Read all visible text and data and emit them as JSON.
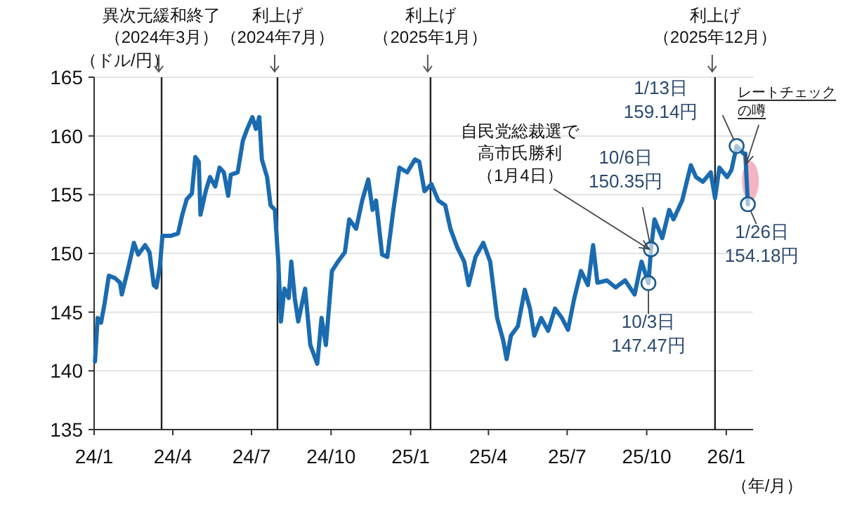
{
  "chart_data": {
    "type": "line",
    "ylabel": "（ドル/円）",
    "xlabel": "（年/月）",
    "xlim": [
      "2024-01-01",
      "2026-02-01"
    ],
    "ylim": [
      135,
      165
    ],
    "xticks": [
      {
        "value": "2024-01-01",
        "label": "24/1"
      },
      {
        "value": "2024-04-01",
        "label": "24/4"
      },
      {
        "value": "2024-07-01",
        "label": "24/7"
      },
      {
        "value": "2024-10-01",
        "label": "24/10"
      },
      {
        "value": "2025-01-01",
        "label": "25/1"
      },
      {
        "value": "2025-04-01",
        "label": "25/4"
      },
      {
        "value": "2025-07-01",
        "label": "25/7"
      },
      {
        "value": "2025-10-01",
        "label": "25/10"
      },
      {
        "value": "2026-01-01",
        "label": "26/1"
      }
    ],
    "yticks": [
      135,
      140,
      145,
      150,
      155,
      160,
      165
    ],
    "grid": "y",
    "x": [
      "2024-01-02",
      "2024-01-05",
      "2024-01-09",
      "2024-01-13",
      "2024-01-18",
      "2024-01-25",
      "2024-01-31",
      "2024-02-02",
      "2024-02-08",
      "2024-02-13",
      "2024-02-16",
      "2024-02-21",
      "2024-02-29",
      "2024-03-05",
      "2024-03-10",
      "2024-03-13",
      "2024-03-17",
      "2024-03-20",
      "2024-03-30",
      "2024-04-07",
      "2024-04-12",
      "2024-04-17",
      "2024-04-23",
      "2024-04-27",
      "2024-05-01",
      "2024-05-03",
      "2024-05-09",
      "2024-05-14",
      "2024-05-20",
      "2024-05-25",
      "2024-05-30",
      "2024-06-04",
      "2024-06-07",
      "2024-06-15",
      "2024-06-21",
      "2024-06-26",
      "2024-07-02",
      "2024-07-06",
      "2024-07-10",
      "2024-07-13",
      "2024-07-19",
      "2024-07-23",
      "2024-07-28",
      "2024-08-01",
      "2024-08-04",
      "2024-08-08",
      "2024-08-13",
      "2024-08-16",
      "2024-08-20",
      "2024-08-24",
      "2024-09-01",
      "2024-09-07",
      "2024-09-15",
      "2024-09-20",
      "2024-09-25",
      "2024-10-02",
      "2024-10-09",
      "2024-10-17",
      "2024-10-22",
      "2024-10-30",
      "2024-11-06",
      "2024-11-13",
      "2024-11-18",
      "2024-11-22",
      "2024-11-29",
      "2024-12-05",
      "2024-12-12",
      "2024-12-19",
      "2024-12-28",
      "2025-01-06",
      "2025-01-11",
      "2025-01-17",
      "2025-01-25",
      "2025-02-02",
      "2025-02-10",
      "2025-02-16",
      "2025-02-24",
      "2025-03-04",
      "2025-03-09",
      "2025-03-17",
      "2025-03-26",
      "2025-04-03",
      "2025-04-11",
      "2025-04-18",
      "2025-04-22",
      "2025-04-27",
      "2025-05-05",
      "2025-05-13",
      "2025-05-19",
      "2025-05-24",
      "2025-06-01",
      "2025-06-09",
      "2025-06-17",
      "2025-06-25",
      "2025-07-02",
      "2025-07-09",
      "2025-07-17",
      "2025-07-25",
      "2025-07-31",
      "2025-08-05",
      "2025-08-16",
      "2025-08-26",
      "2025-09-06",
      "2025-09-17",
      "2025-09-25",
      "2025-10-03",
      "2025-10-06",
      "2025-10-10",
      "2025-10-19",
      "2025-10-27",
      "2025-11-01",
      "2025-11-11",
      "2025-11-21",
      "2025-11-27",
      "2025-12-05",
      "2025-12-14",
      "2025-12-19",
      "2025-12-24",
      "2026-01-02",
      "2026-01-07",
      "2026-01-13",
      "2026-01-21",
      "2026-01-23",
      "2026-01-26"
    ],
    "series": [
      {
        "color": "#1a6bb0",
        "values": [
          140.8,
          144.5,
          144.1,
          145.7,
          148.1,
          147.9,
          147.5,
          146.5,
          148.3,
          149.9,
          150.9,
          149.9,
          150.7,
          150.1,
          147.3,
          147.1,
          148.9,
          151.5,
          151.5,
          151.7,
          153.3,
          154.6,
          155.1,
          158.2,
          157.8,
          153.3,
          155.3,
          156.5,
          155.7,
          157.3,
          156.9,
          154.9,
          156.7,
          156.9,
          159.6,
          160.6,
          161.6,
          160.6,
          161.6,
          158.0,
          156.5,
          154.1,
          153.7,
          149.3,
          144.2,
          147.0,
          146.2,
          149.3,
          146.2,
          144.2,
          147.0,
          142.2,
          140.6,
          144.5,
          142.2,
          148.5,
          149.3,
          150.1,
          152.9,
          152.1,
          154.5,
          156.3,
          153.7,
          154.5,
          149.9,
          149.7,
          153.7,
          157.3,
          156.9,
          158.0,
          157.8,
          155.3,
          155.9,
          154.5,
          154.1,
          152.1,
          150.5,
          149.3,
          147.3,
          149.7,
          150.9,
          149.3,
          144.5,
          142.6,
          141.0,
          143.0,
          143.8,
          146.9,
          145.3,
          143.0,
          144.5,
          143.4,
          145.3,
          144.5,
          143.5,
          146.1,
          148.5,
          147.3,
          150.7,
          147.5,
          147.7,
          147.1,
          147.7,
          146.5,
          149.3,
          147.47,
          150.35,
          152.9,
          151.3,
          153.7,
          152.9,
          154.5,
          157.5,
          156.5,
          156.1,
          156.9,
          154.7,
          157.3,
          156.5,
          157.1,
          159.14,
          158.5,
          158.5,
          154.18
        ]
      }
    ],
    "ref_lines": [
      {
        "axis": "x",
        "value": "2024-03-19",
        "label": "異次元緩和終了（2024年3月）"
      },
      {
        "axis": "x",
        "value": "2024-07-31",
        "label": "利上げ（2024年7月）"
      },
      {
        "axis": "x",
        "value": "2025-01-24",
        "label": "利上げ（2025年1月）"
      },
      {
        "axis": "x",
        "value": "2025-12-19",
        "label": "利上げ（2025年12月）"
      }
    ],
    "annotations": [
      {
        "text": "1/13日\n159.14円",
        "x": "2026-01-13",
        "y": 159.14
      },
      {
        "text": "10/6日\n150.35円",
        "x": "2025-10-06",
        "y": 150.35
      },
      {
        "text": "10/3日\n147.47円",
        "x": "2025-10-03",
        "y": 147.47
      },
      {
        "text": "1/26日\n154.18円",
        "x": "2026-01-26",
        "y": 154.18
      },
      {
        "text": "自民党総裁選で高市氏勝利（1月4日）",
        "x": "2025-10-04",
        "y": 150.35
      },
      {
        "text": "レートチェックの噂",
        "x": "2026-01-24",
        "y": 157.6
      }
    ]
  }
}
